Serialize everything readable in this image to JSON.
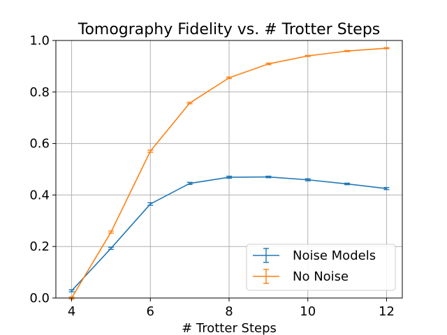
{
  "chart_data": {
    "type": "line",
    "title": "Tomography Fidelity vs. # Trotter Steps",
    "xlabel": "# Trotter Steps",
    "ylabel": "",
    "xlim": [
      3.6,
      12.4
    ],
    "ylim": [
      0.0,
      1.0
    ],
    "xticks": [
      4,
      6,
      8,
      10,
      12
    ],
    "yticks": [
      0.0,
      0.2,
      0.4,
      0.6,
      0.8,
      1.0
    ],
    "ytick_labels": [
      "0.0",
      "0.2",
      "0.4",
      "0.6",
      "0.8",
      "1.0"
    ],
    "grid": true,
    "legend_position": "lower-right",
    "x": [
      4,
      5,
      6,
      7,
      8,
      9,
      10,
      11,
      12
    ],
    "series": [
      {
        "name": "Noise Models",
        "color": "#1f77b4",
        "values": [
          0.028,
          0.193,
          0.365,
          0.445,
          0.469,
          0.47,
          0.459,
          0.443,
          0.425
        ],
        "errors": [
          0.004,
          0.004,
          0.005,
          0.004,
          0.004,
          0.003,
          0.004,
          0.003,
          0.004
        ]
      },
      {
        "name": "No Noise",
        "color": "#ff7f0e",
        "values": [
          0.0,
          0.256,
          0.57,
          0.757,
          0.855,
          0.909,
          0.94,
          0.959,
          0.97
        ],
        "errors": [
          0.004,
          0.004,
          0.004,
          0.003,
          0.003,
          0.003,
          0.002,
          0.002,
          0.002
        ]
      }
    ]
  }
}
